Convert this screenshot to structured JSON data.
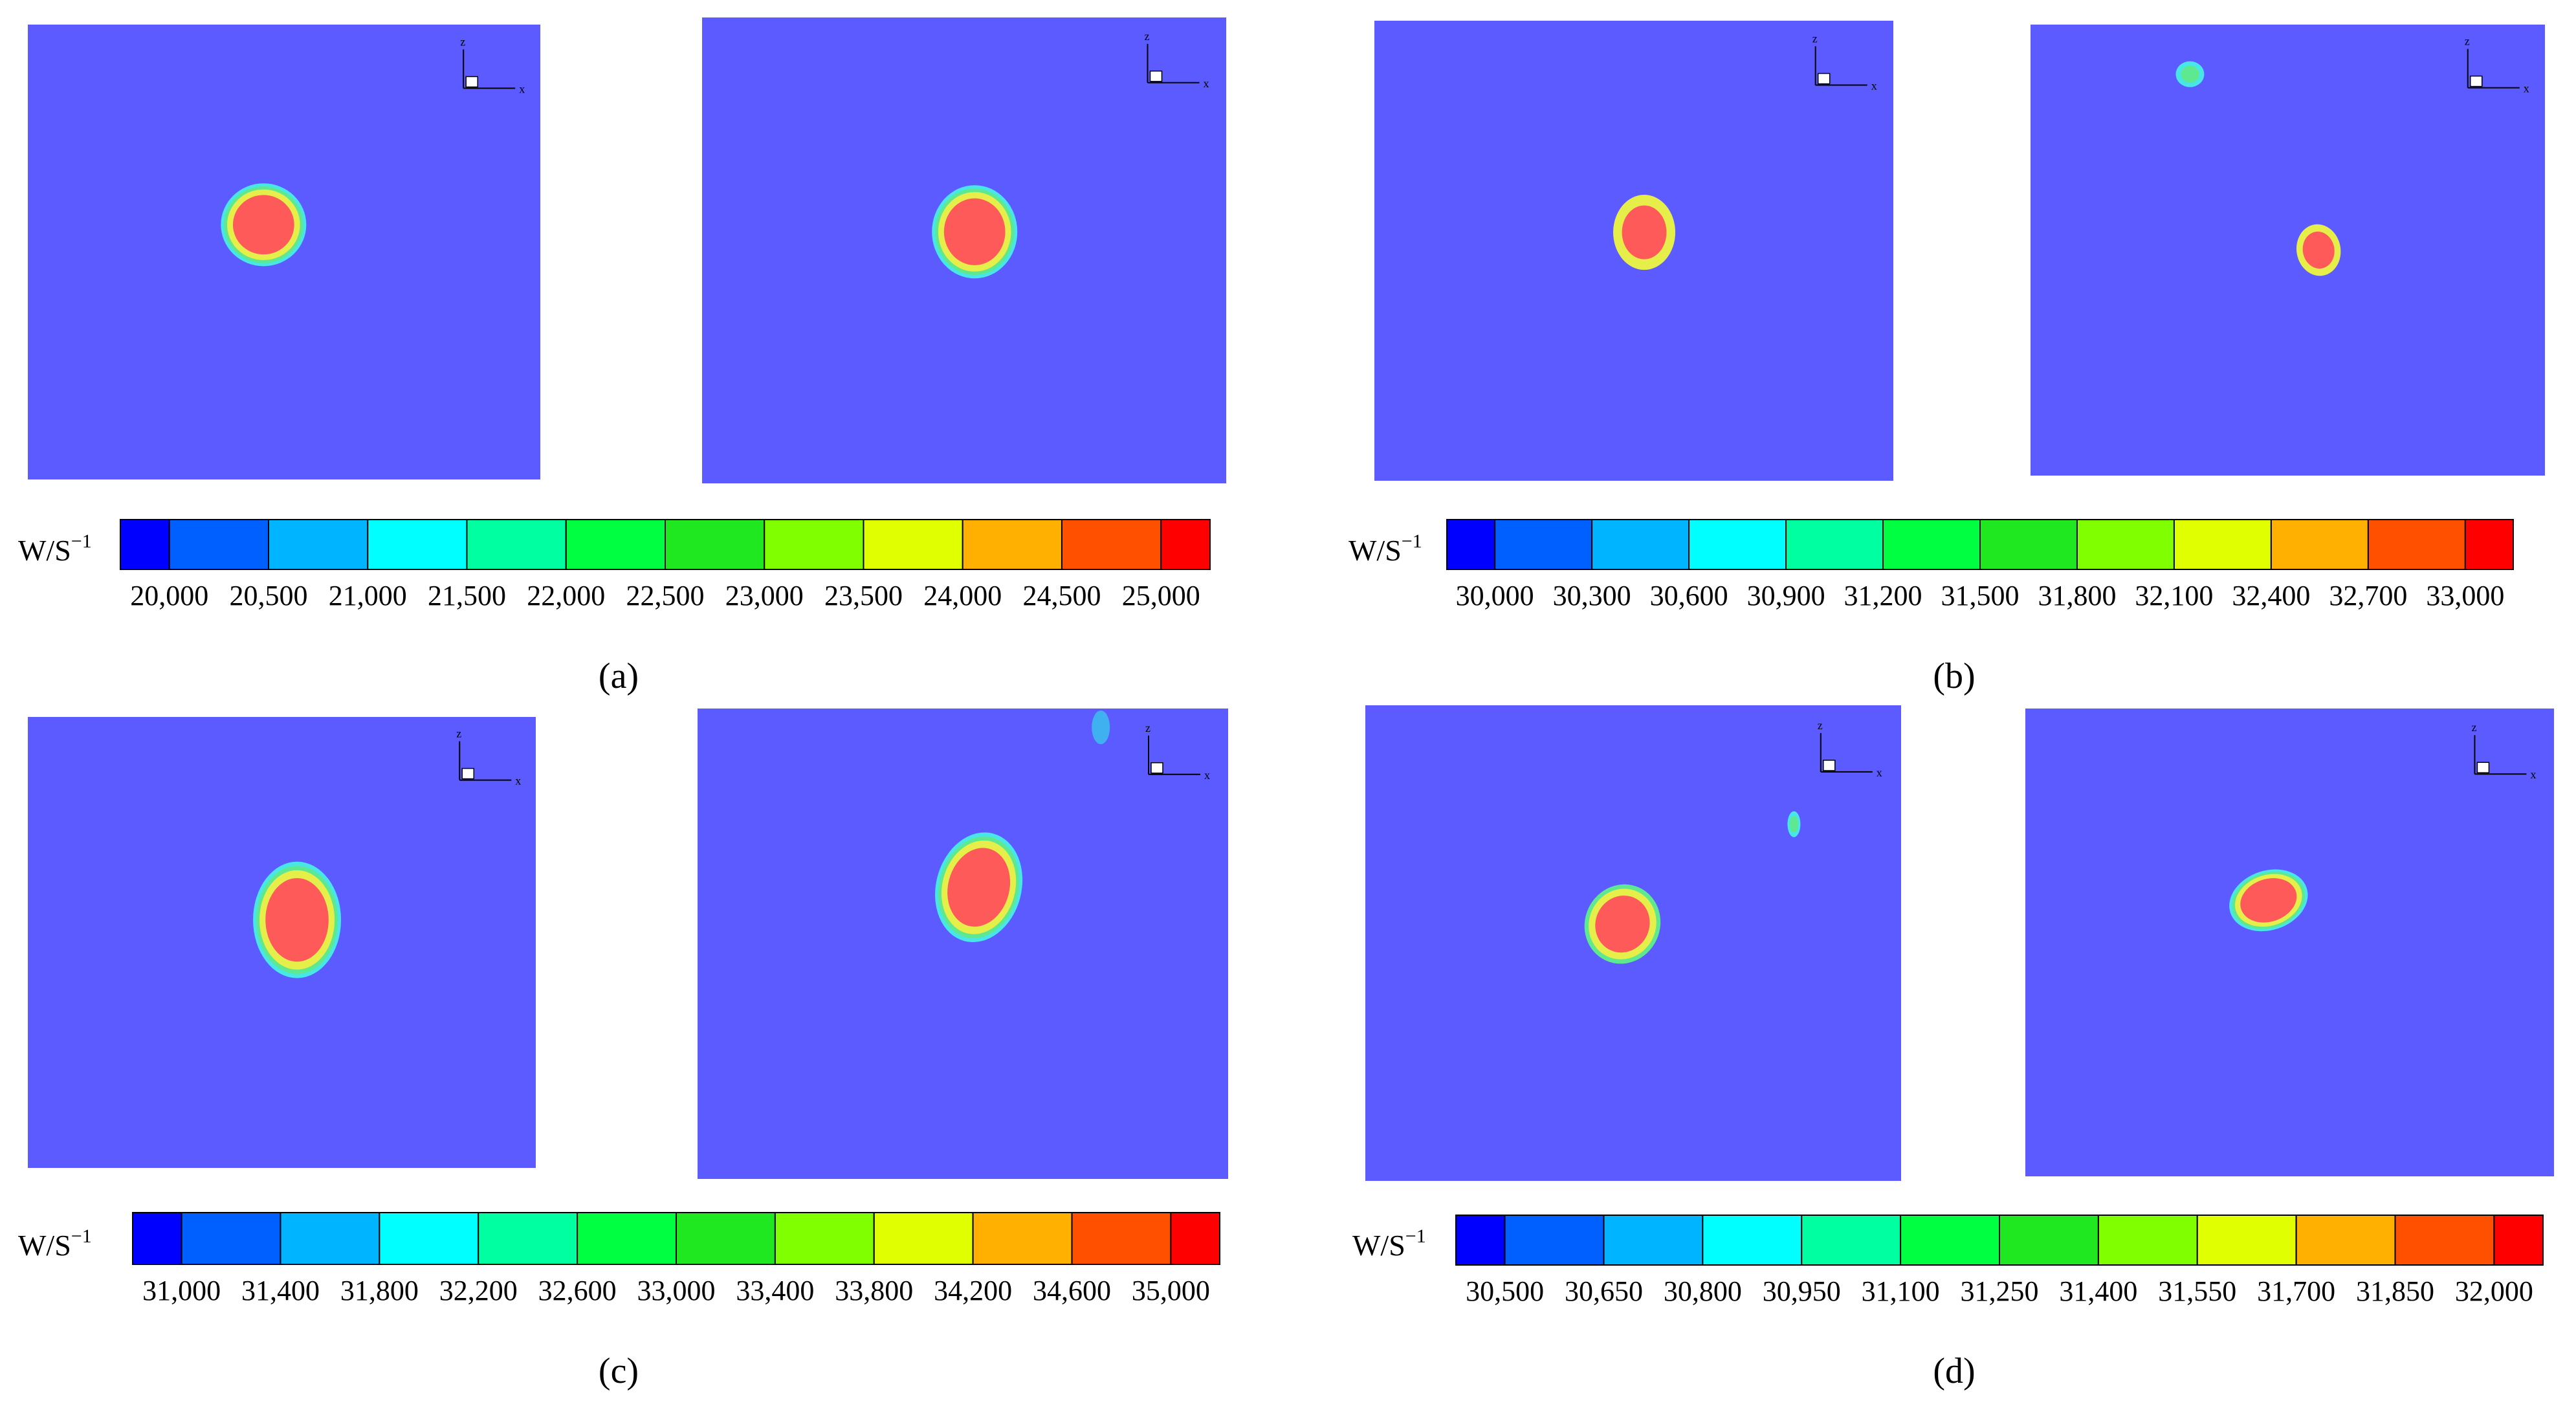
{
  "panels": [
    {
      "caption": "(a)",
      "unit": "W/S",
      "unit_exp": "−1",
      "colorbar": {
        "ticks": [
          "20,000",
          "20,500",
          "21,000",
          "21,500",
          "22,000",
          "22,500",
          "23,000",
          "23,500",
          "24,000",
          "24,500",
          "25,000"
        ],
        "colors": [
          "#0000ff",
          "#0060ff",
          "#00b4ff",
          "#00ffff",
          "#00ffa0",
          "#00ff40",
          "#20e820",
          "#80ff00",
          "#e0ff00",
          "#ffb000",
          "#ff5000",
          "#ff0000"
        ]
      },
      "plots": [
        {
          "axis_z": "z",
          "axis_x": "x"
        },
        {
          "axis_z": "z",
          "axis_x": "x"
        }
      ]
    },
    {
      "caption": "(b)",
      "unit": "W/S",
      "unit_exp": "−1",
      "colorbar": {
        "ticks": [
          "30,000",
          "30,300",
          "30,600",
          "30,900",
          "31,200",
          "31,500",
          "31,800",
          "32,100",
          "32,400",
          "32,700",
          "33,000"
        ],
        "colors": [
          "#0000ff",
          "#0060ff",
          "#00b4ff",
          "#00ffff",
          "#00ffa0",
          "#00ff40",
          "#20e820",
          "#80ff00",
          "#e0ff00",
          "#ffb000",
          "#ff5000",
          "#ff0000"
        ]
      },
      "plots": [
        {
          "axis_z": "z",
          "axis_x": "x"
        },
        {
          "axis_z": "z",
          "axis_x": "x"
        }
      ]
    },
    {
      "caption": "(c)",
      "unit": "W/S",
      "unit_exp": "−1",
      "colorbar": {
        "ticks": [
          "31,000",
          "31,400",
          "31,800",
          "32,200",
          "32,600",
          "33,000",
          "33,400",
          "33,800",
          "34,200",
          "34,600",
          "35,000"
        ],
        "colors": [
          "#0000ff",
          "#0060ff",
          "#00b4ff",
          "#00ffff",
          "#00ffa0",
          "#00ff40",
          "#20e820",
          "#80ff00",
          "#e0ff00",
          "#ffb000",
          "#ff5000",
          "#ff0000"
        ]
      },
      "plots": [
        {
          "axis_z": "z",
          "axis_x": "x"
        },
        {
          "axis_z": "z",
          "axis_x": "x"
        }
      ]
    },
    {
      "caption": "(d)",
      "unit": "W/S",
      "unit_exp": "−1",
      "colorbar": {
        "ticks": [
          "30,500",
          "30,650",
          "30,800",
          "30,950",
          "31,100",
          "31,250",
          "31,400",
          "31,550",
          "31,700",
          "31,850",
          "32,000"
        ],
        "colors": [
          "#0000ff",
          "#0060ff",
          "#00b4ff",
          "#00ffff",
          "#00ffa0",
          "#00ff40",
          "#20e820",
          "#80ff00",
          "#e0ff00",
          "#ffb000",
          "#ff5000",
          "#ff0000"
        ]
      },
      "plots": [
        {
          "axis_z": "z",
          "axis_x": "x"
        },
        {
          "axis_z": "z",
          "axis_x": "x"
        }
      ]
    }
  ],
  "colors": {
    "background_field": "#5b5bff",
    "core": "#ff5a5a",
    "ring_yellow": "#e6ef4a",
    "ring_green": "#5ee88f",
    "ring_cyan": "#48e6e6",
    "small_blob": "#3fb0f0"
  }
}
